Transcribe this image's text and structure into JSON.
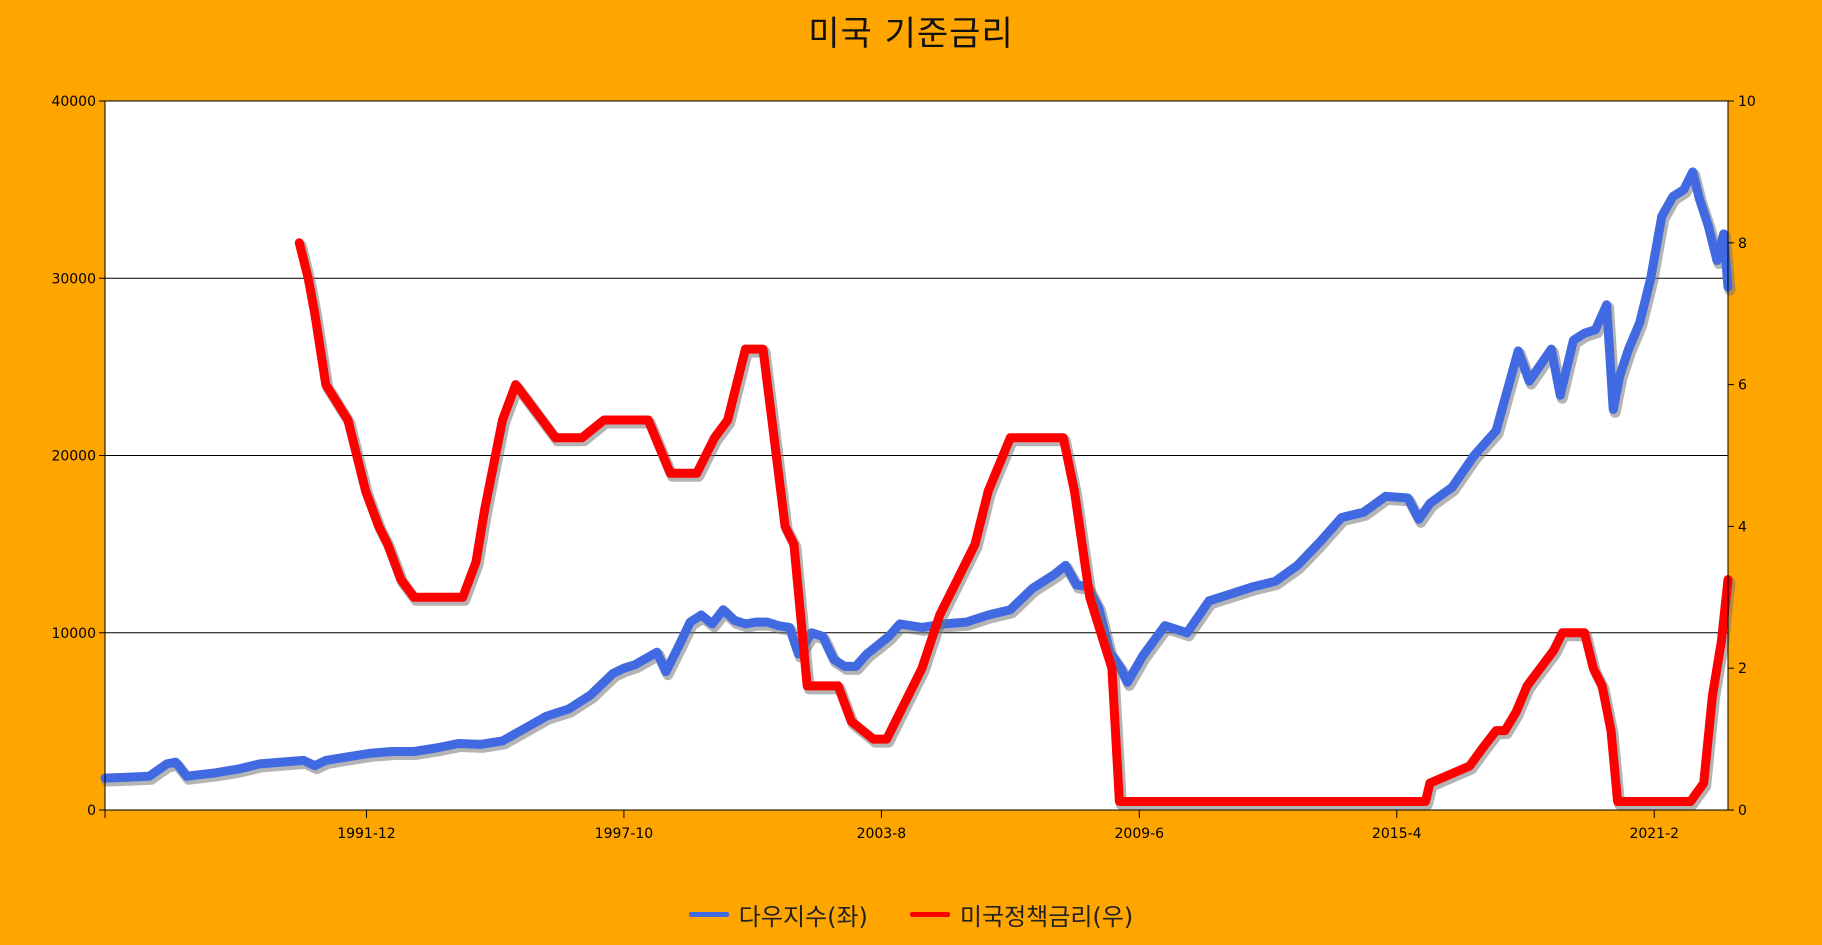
{
  "chart_data": {
    "type": "line",
    "title": "미국 기준금리",
    "x_tick_labels": [
      "1991-12",
      "1997-10",
      "2003-8",
      "2009-6",
      "2015-4",
      "2021-2"
    ],
    "x_ticks_decimal_year": [
      1991.92,
      1997.75,
      2003.58,
      2009.42,
      2015.25,
      2021.08
    ],
    "xlim": [
      1986.0,
      2022.75
    ],
    "left_axis": {
      "ylim": [
        0,
        40000
      ],
      "ticks": [
        0,
        10000,
        20000,
        30000,
        40000
      ]
    },
    "right_axis": {
      "ylim": [
        0,
        10
      ],
      "ticks": [
        0,
        2,
        4,
        6,
        8,
        10
      ]
    },
    "grid": "horizontal",
    "legend_position": "bottom",
    "series": [
      {
        "name": "다우지수(좌)",
        "axis": "left",
        "color": "#4169E1",
        "x": [
          1986.0,
          1986.5,
          1987.0,
          1987.4,
          1987.6,
          1987.85,
          1988.0,
          1988.5,
          1989.0,
          1989.5,
          1990.0,
          1990.5,
          1990.75,
          1991.0,
          1991.5,
          1992.0,
          1992.5,
          1993.0,
          1993.5,
          1994.0,
          1994.5,
          1995.0,
          1995.5,
          1996.0,
          1996.5,
          1997.0,
          1997.5,
          1997.75,
          1998.0,
          1998.5,
          1998.7,
          1999.0,
          1999.25,
          1999.5,
          1999.75,
          2000.0,
          2000.25,
          2000.5,
          2000.75,
          2001.0,
          2001.25,
          2001.5,
          2001.7,
          2002.0,
          2002.25,
          2002.5,
          2002.75,
          2003.0,
          2003.25,
          2003.5,
          2003.75,
          2004.0,
          2004.5,
          2005.0,
          2005.5,
          2006.0,
          2006.5,
          2007.0,
          2007.5,
          2007.75,
          2008.0,
          2008.25,
          2008.5,
          2008.75,
          2009.0,
          2009.15,
          2009.5,
          2010.0,
          2010.5,
          2011.0,
          2011.5,
          2012.0,
          2012.5,
          2013.0,
          2013.5,
          2014.0,
          2014.5,
          2015.0,
          2015.5,
          2015.75,
          2016.0,
          2016.5,
          2017.0,
          2017.5,
          2018.0,
          2018.25,
          2018.5,
          2018.75,
          2018.95,
          2019.25,
          2019.5,
          2019.75,
          2020.0,
          2020.15,
          2020.3,
          2020.5,
          2020.75,
          2021.0,
          2021.25,
          2021.5,
          2021.75,
          2021.95,
          2022.1,
          2022.3,
          2022.5,
          2022.65,
          2022.75
        ],
        "values": [
          1800,
          1850,
          1900,
          2600,
          2700,
          1900,
          1950,
          2100,
          2300,
          2600,
          2700,
          2800,
          2500,
          2800,
          3000,
          3200,
          3300,
          3300,
          3500,
          3750,
          3700,
          3900,
          4600,
          5300,
          5700,
          6500,
          7700,
          8000,
          8200,
          8900,
          7800,
          9300,
          10600,
          11000,
          10500,
          11300,
          10700,
          10500,
          10600,
          10600,
          10400,
          10300,
          8800,
          10000,
          9800,
          8500,
          8100,
          8100,
          8800,
          9300,
          9800,
          10500,
          10300,
          10500,
          10600,
          11000,
          11300,
          12500,
          13300,
          13800,
          12700,
          12600,
          11400,
          8900,
          8000,
          7200,
          8700,
          10400,
          10000,
          11800,
          12200,
          12600,
          12900,
          13800,
          15100,
          16500,
          16800,
          17700,
          17600,
          16400,
          17300,
          18200,
          20000,
          21400,
          25900,
          24200,
          25100,
          26000,
          23400,
          26500,
          26900,
          27100,
          28500,
          22600,
          24500,
          26000,
          27500,
          30000,
          33500,
          34600,
          35000,
          36000,
          34500,
          33000,
          31000,
          32500,
          29500
        ]
      },
      {
        "name": "미국정책금리(우)",
        "axis": "right",
        "color": "#FF0000",
        "x": [
          1990.4,
          1990.6,
          1990.75,
          1991.0,
          1991.25,
          1991.5,
          1991.9,
          1992.2,
          1992.4,
          1992.7,
          1993.0,
          1994.1,
          1994.4,
          1994.6,
          1995.0,
          1995.3,
          1995.6,
          1996.2,
          1996.5,
          1996.8,
          1997.3,
          1998.3,
          1998.8,
          1999.4,
          1999.8,
          2000.1,
          2000.5,
          2000.9,
          2001.1,
          2001.4,
          2001.6,
          2001.9,
          2002.6,
          2002.9,
          2003.4,
          2003.7,
          2004.5,
          2004.9,
          2005.3,
          2005.7,
          2006.0,
          2006.5,
          2007.7,
          2007.95,
          2008.3,
          2008.8,
          2008.97,
          2015.9,
          2016.0,
          2016.9,
          2017.2,
          2017.5,
          2017.7,
          2017.95,
          2018.2,
          2018.5,
          2018.8,
          2019.0,
          2019.5,
          2019.7,
          2019.9,
          2020.1,
          2020.25,
          2021.9,
          2022.2,
          2022.4,
          2022.6,
          2022.75
        ],
        "values": [
          8.0,
          7.5,
          7.0,
          6.0,
          5.75,
          5.5,
          4.5,
          4.0,
          3.75,
          3.25,
          3.0,
          3.0,
          3.5,
          4.25,
          5.5,
          6.0,
          5.75,
          5.25,
          5.25,
          5.25,
          5.5,
          5.5,
          4.75,
          4.75,
          5.25,
          5.5,
          6.5,
          6.5,
          5.5,
          4.0,
          3.75,
          1.75,
          1.75,
          1.25,
          1.0,
          1.0,
          2.0,
          2.75,
          3.25,
          3.75,
          4.5,
          5.25,
          5.25,
          4.5,
          3.0,
          2.0,
          0.12,
          0.12,
          0.38,
          0.62,
          0.88,
          1.12,
          1.12,
          1.38,
          1.75,
          2.0,
          2.25,
          2.5,
          2.5,
          2.0,
          1.75,
          1.12,
          0.12,
          0.12,
          0.38,
          1.62,
          2.38,
          3.25
        ]
      }
    ]
  },
  "legend": {
    "dow_label": "다우지수(좌)",
    "rate_label": "미국정책금리(우)"
  }
}
